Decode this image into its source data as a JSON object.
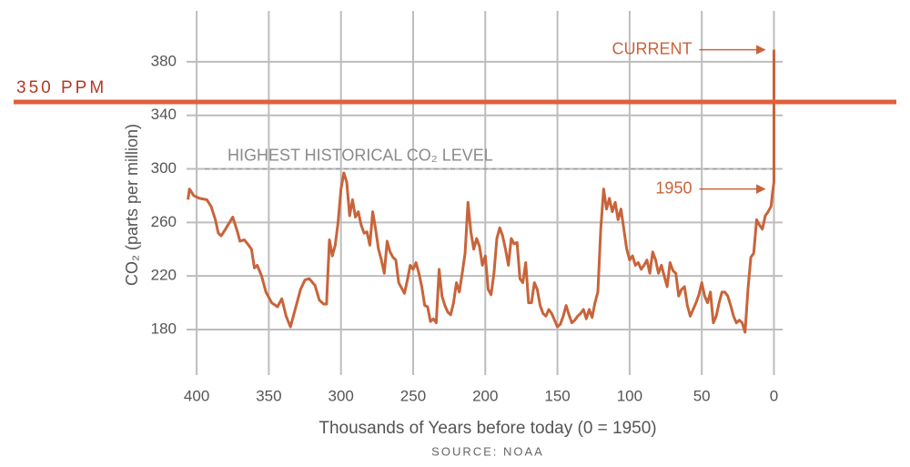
{
  "chart_data": {
    "type": "line",
    "x_label": "Thousands of Years before today (0 = 1950)",
    "y_label": "CO₂ (parts per million)",
    "source": "SOURCE: NOAA",
    "xlim": [
      407,
      -6
    ],
    "ylim": [
      146,
      418
    ],
    "xticks": [
      400,
      350,
      300,
      250,
      200,
      150,
      100,
      50,
      0
    ],
    "yticks": [
      180,
      220,
      260,
      300,
      340,
      380
    ],
    "grid": true,
    "reference_lines": [
      {
        "value": 350,
        "label": "350 PPM",
        "color": "#e0603a",
        "label_color": "#b03a26"
      },
      {
        "value": 300,
        "label": "HIGHEST HISTORICAL CO₂ LEVEL",
        "color": "#9a9a9a",
        "dashed": true
      }
    ],
    "annotations": [
      {
        "text": "CURRENT",
        "x": 0,
        "y": 389
      },
      {
        "text": "1950",
        "x": 0,
        "y": 285
      }
    ],
    "x": [
      406,
      405,
      402,
      398,
      393,
      390,
      387,
      385,
      383,
      380,
      375,
      372,
      370,
      367,
      364,
      362,
      360,
      358,
      355,
      352,
      348,
      344,
      341,
      338,
      335,
      332,
      328,
      325,
      322,
      318,
      315,
      312,
      310,
      308,
      306,
      304,
      302,
      300,
      298,
      296,
      294,
      292,
      290,
      288,
      286,
      284,
      282,
      280,
      278,
      276,
      274,
      272,
      270,
      268,
      266,
      264,
      262,
      260,
      258,
      256,
      254,
      252,
      250,
      248,
      246,
      244,
      242,
      240,
      238,
      236,
      234,
      232,
      230,
      228,
      226,
      224,
      222,
      220,
      218,
      216,
      214,
      212,
      210,
      208,
      206,
      204,
      202,
      200,
      198,
      196,
      194,
      192,
      190,
      188,
      186,
      184,
      182,
      180,
      178,
      176,
      174,
      172,
      170,
      168,
      166,
      164,
      162,
      160,
      158,
      156,
      154,
      152,
      150,
      148,
      146,
      144,
      142,
      140,
      138,
      136,
      134,
      132,
      130,
      128,
      126,
      124,
      122,
      120,
      118,
      116,
      114,
      112,
      110,
      108,
      106,
      104,
      102,
      100,
      98,
      96,
      94,
      92,
      90,
      88,
      86,
      84,
      82,
      80,
      78,
      76,
      74,
      72,
      70,
      68,
      66,
      64,
      62,
      60,
      58,
      56,
      54,
      52,
      50,
      48,
      46,
      44,
      42,
      40,
      38,
      36,
      34,
      32,
      30,
      28,
      26,
      24,
      22,
      20,
      18,
      16,
      14,
      12,
      10,
      8,
      6,
      4,
      2,
      1,
      0,
      0
    ],
    "series": [
      {
        "name": "CO2",
        "color": "#c8643a",
        "values": [
          277,
          285,
          280,
          278,
          277,
          272,
          262,
          252,
          250,
          255,
          264,
          254,
          246,
          247,
          243,
          240,
          226,
          228,
          220,
          208,
          200,
          197,
          203,
          190,
          182,
          194,
          210,
          217,
          218,
          213,
          202,
          199,
          199,
          247,
          235,
          243,
          260,
          285,
          297,
          290,
          265,
          277,
          264,
          268,
          258,
          252,
          253,
          243,
          268,
          255,
          240,
          232,
          222,
          246,
          238,
          234,
          232,
          215,
          211,
          207,
          217,
          228,
          225,
          230,
          222,
          212,
          198,
          197,
          186,
          188,
          185,
          225,
          205,
          198,
          193,
          191,
          200,
          215,
          208,
          222,
          237,
          275,
          253,
          240,
          248,
          242,
          228,
          235,
          210,
          206,
          222,
          248,
          256,
          250,
          240,
          228,
          248,
          244,
          245,
          218,
          215,
          230,
          200,
          200,
          215,
          210,
          198,
          192,
          190,
          195,
          192,
          187,
          182,
          184,
          190,
          198,
          191,
          185,
          187,
          190,
          192,
          195,
          188,
          195,
          189,
          200,
          208,
          255,
          285,
          270,
          278,
          268,
          275,
          262,
          270,
          255,
          240,
          232,
          235,
          228,
          230,
          225,
          228,
          232,
          222,
          238,
          232,
          222,
          228,
          220,
          212,
          230,
          224,
          222,
          205,
          210,
          212,
          198,
          190,
          195,
          200,
          206,
          215,
          205,
          200,
          208,
          185,
          190,
          200,
          208,
          208,
          205,
          198,
          190,
          185,
          187,
          185,
          178,
          210,
          234,
          237,
          262,
          258,
          255,
          265,
          268,
          272,
          282,
          290,
          389
        ]
      }
    ]
  }
}
